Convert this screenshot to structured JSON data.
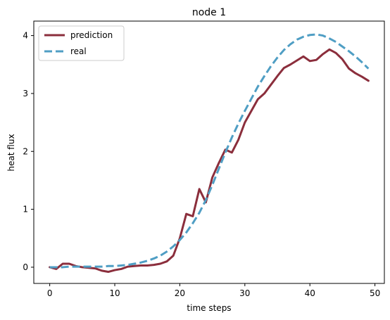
{
  "chart_data": {
    "type": "line",
    "title": "node 1",
    "xlabel": "time steps",
    "ylabel": "heat flux",
    "xlim": [
      -2.45,
      51.45
    ],
    "ylim": [
      -0.28,
      4.25
    ],
    "xticks": [
      0,
      10,
      20,
      30,
      40,
      50
    ],
    "yticks": [
      0,
      1,
      2,
      3,
      4
    ],
    "grid": false,
    "legend_position": "top-left",
    "x": [
      0,
      1,
      2,
      3,
      4,
      5,
      6,
      7,
      8,
      9,
      10,
      11,
      12,
      13,
      14,
      15,
      16,
      17,
      18,
      19,
      20,
      21,
      22,
      23,
      24,
      25,
      26,
      27,
      28,
      29,
      30,
      31,
      32,
      33,
      34,
      35,
      36,
      37,
      38,
      39,
      40,
      41,
      42,
      43,
      44,
      45,
      46,
      47,
      48,
      49
    ],
    "series": [
      {
        "name": "prediction",
        "color": "#8b2e3c",
        "style": "solid",
        "values": [
          0.0,
          -0.03,
          0.06,
          0.06,
          0.02,
          0.0,
          -0.01,
          -0.02,
          -0.06,
          -0.08,
          -0.05,
          -0.03,
          0.01,
          0.02,
          0.03,
          0.03,
          0.04,
          0.06,
          0.1,
          0.2,
          0.5,
          0.92,
          0.88,
          1.35,
          1.12,
          1.55,
          1.8,
          2.03,
          1.98,
          2.2,
          2.5,
          2.7,
          2.9,
          3.0,
          3.15,
          3.3,
          3.44,
          3.5,
          3.57,
          3.64,
          3.56,
          3.58,
          3.68,
          3.76,
          3.7,
          3.59,
          3.43,
          3.35,
          3.29,
          3.22
        ]
      },
      {
        "name": "real",
        "color": "#4f9ec4",
        "style": "dashed",
        "values": [
          0.0,
          0.0,
          0.0,
          0.01,
          0.01,
          0.01,
          0.01,
          0.01,
          0.01,
          0.02,
          0.02,
          0.03,
          0.04,
          0.06,
          0.08,
          0.11,
          0.15,
          0.2,
          0.27,
          0.36,
          0.47,
          0.6,
          0.76,
          0.94,
          1.16,
          1.42,
          1.7,
          1.98,
          2.24,
          2.48,
          2.7,
          2.91,
          3.12,
          3.3,
          3.47,
          3.62,
          3.75,
          3.85,
          3.93,
          3.98,
          4.01,
          4.02,
          4.0,
          3.95,
          3.89,
          3.81,
          3.73,
          3.64,
          3.54,
          3.43
        ]
      }
    ]
  }
}
